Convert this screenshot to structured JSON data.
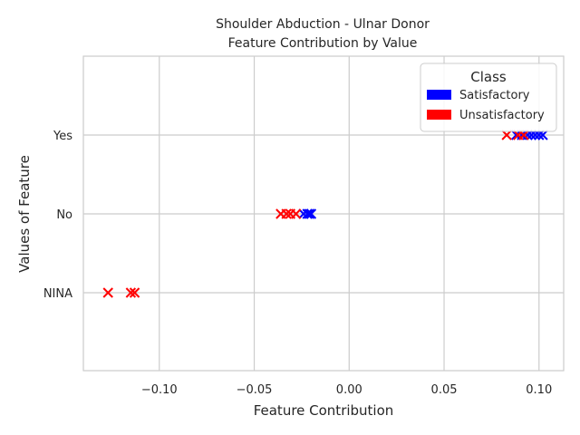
{
  "chart_data": {
    "type": "scatter",
    "title": "Shoulder Abduction - Ulnar Donor",
    "subtitle": "Feature Contribution by Value",
    "xlabel": "Feature Contribution",
    "ylabel": "Values of Feature",
    "xlim": [
      -0.14,
      0.113
    ],
    "xticks": [
      -0.1,
      -0.05,
      0.0,
      0.05,
      0.1
    ],
    "xtick_labels": [
      "−0.10",
      "−0.05",
      "0.00",
      "0.05",
      "0.10"
    ],
    "categories": [
      "NINA",
      "No",
      "Yes"
    ],
    "grid": true,
    "legend": {
      "title": "Class",
      "placement": "top-right",
      "entries": [
        {
          "name": "Satisfactory",
          "color": "#0000ff"
        },
        {
          "name": "Unsatisfactory",
          "color": "#ff0000"
        }
      ]
    },
    "series": [
      {
        "name": "Satisfactory",
        "color": "#0000ff",
        "marker": "x",
        "points": [
          {
            "x": 0.088,
            "y": "Yes"
          },
          {
            "x": 0.091,
            "y": "Yes"
          },
          {
            "x": 0.094,
            "y": "Yes"
          },
          {
            "x": 0.096,
            "y": "Yes"
          },
          {
            "x": 0.098,
            "y": "Yes"
          },
          {
            "x": 0.1,
            "y": "Yes"
          },
          {
            "x": 0.102,
            "y": "Yes"
          },
          {
            "x": -0.024,
            "y": "No"
          },
          {
            "x": -0.022,
            "y": "No"
          },
          {
            "x": -0.021,
            "y": "No"
          },
          {
            "x": -0.02,
            "y": "No"
          }
        ]
      },
      {
        "name": "Unsatisfactory",
        "color": "#ff0000",
        "marker": "x",
        "points": [
          {
            "x": 0.083,
            "y": "Yes"
          },
          {
            "x": 0.089,
            "y": "Yes"
          },
          {
            "x": 0.092,
            "y": "Yes"
          },
          {
            "x": -0.036,
            "y": "No"
          },
          {
            "x": -0.033,
            "y": "No"
          },
          {
            "x": -0.031,
            "y": "No"
          },
          {
            "x": -0.028,
            "y": "No"
          },
          {
            "x": -0.127,
            "y": "NINA"
          },
          {
            "x": -0.115,
            "y": "NINA"
          },
          {
            "x": -0.113,
            "y": "NINA"
          }
        ]
      }
    ]
  }
}
